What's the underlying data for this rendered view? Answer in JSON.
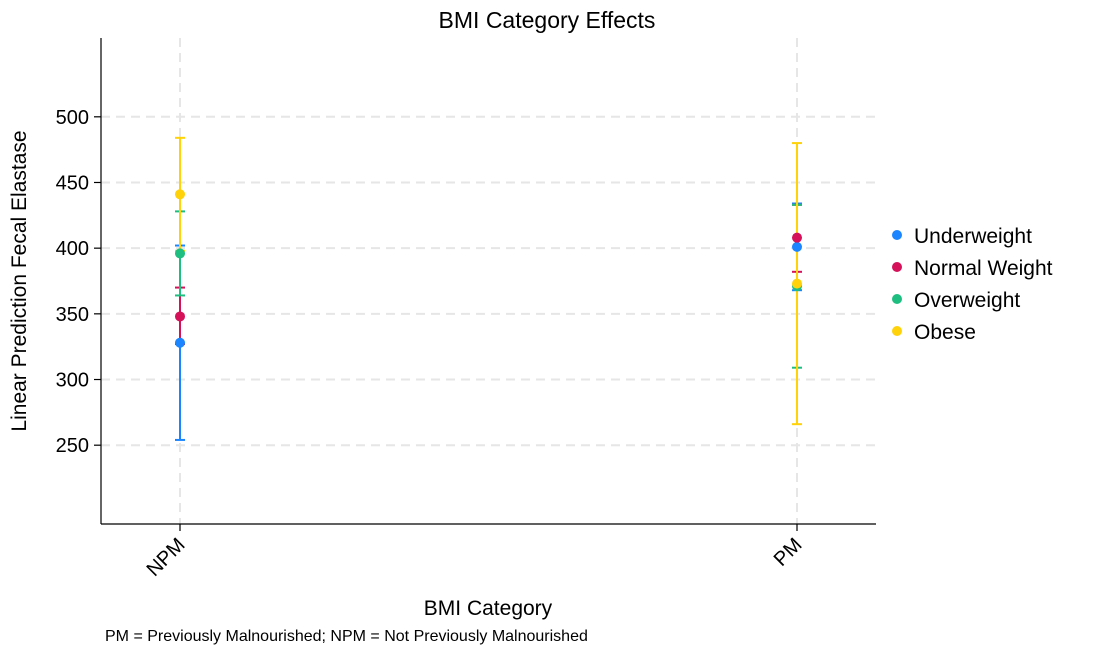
{
  "chart_data": {
    "type": "scatter",
    "title": "BMI Category Effects",
    "xlabel": "BMI Category",
    "ylabel": "Linear Prediction Fecal Elastase",
    "categories": [
      "NPM",
      "PM"
    ],
    "yticks": [
      250,
      300,
      350,
      400,
      450,
      500
    ],
    "ylim": [
      190,
      560
    ],
    "grid": true,
    "legend_position": "right",
    "series": [
      {
        "name": "Underweight",
        "color": "#1a85ff",
        "values": [
          328,
          401
        ],
        "lower": [
          254,
          368
        ],
        "upper": [
          402,
          434
        ]
      },
      {
        "name": "Normal Weight",
        "color": "#d41159",
        "values": [
          348,
          408
        ],
        "lower": [
          327,
          382
        ],
        "upper": [
          370,
          433
        ]
      },
      {
        "name": "Overweight",
        "color": "#1ebe81",
        "values": [
          396,
          371
        ],
        "lower": [
          364,
          309
        ],
        "upper": [
          428,
          433
        ]
      },
      {
        "name": "Obese",
        "color": "#ffd20a",
        "values": [
          441,
          373
        ],
        "lower": [
          398,
          266
        ],
        "upper": [
          484,
          480
        ]
      }
    ]
  },
  "footnote": "PM = Previously Malnourished; NPM = Not Previously Malnourished"
}
